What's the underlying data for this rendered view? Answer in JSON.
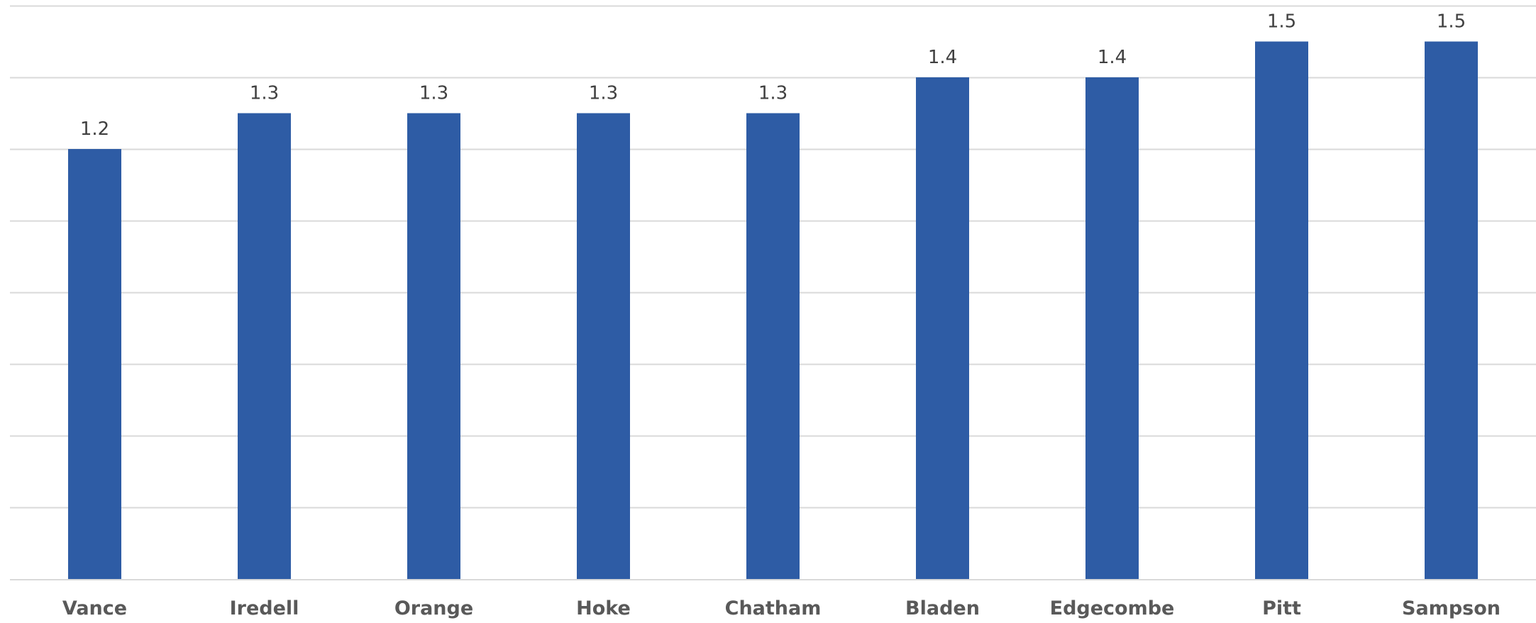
{
  "chart_data": {
    "type": "bar",
    "title": "",
    "xlabel": "",
    "ylabel": "",
    "categories": [
      "Vance",
      "Iredell",
      "Orange",
      "Hoke",
      "Chatham",
      "Bladen",
      "Edgecombe",
      "Pitt",
      "Sampson"
    ],
    "values": [
      1.2,
      1.3,
      1.3,
      1.3,
      1.3,
      1.4,
      1.4,
      1.5,
      1.5
    ],
    "data_labels": [
      "1.2",
      "1.3",
      "1.3",
      "1.3",
      "1.3",
      "1.4",
      "1.4",
      "1.5",
      "1.5"
    ],
    "ylim": [
      0,
      1.6
    ],
    "y_gridline_step": 0.2,
    "grid": true,
    "y_axis_labels_shown": false,
    "legend": "none",
    "bar_color": "#2e5ca5",
    "gridline_color": "#d9d9d9"
  }
}
